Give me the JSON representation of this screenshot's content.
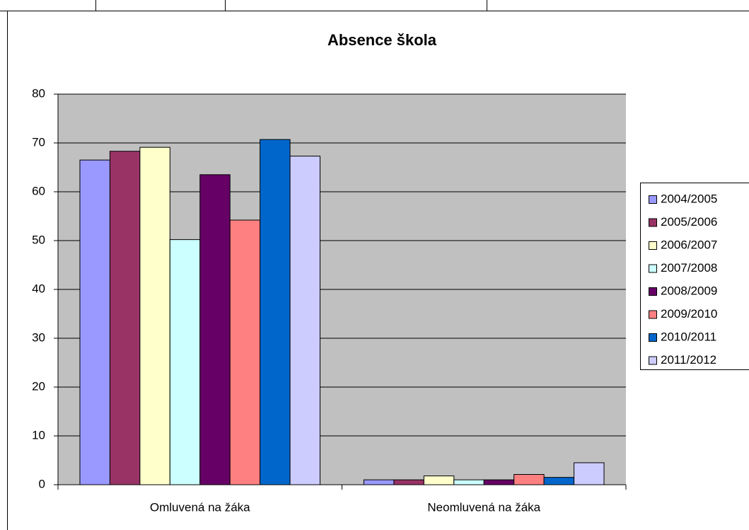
{
  "chart_data": {
    "type": "bar",
    "title": "Absence škola",
    "categories": [
      "Omluvená na žáka",
      "Neomluvená na žáka"
    ],
    "series": [
      {
        "name": "2004/2005",
        "color": "#9999ff",
        "values": [
          66.5,
          1.0
        ]
      },
      {
        "name": "2005/2006",
        "color": "#993366",
        "values": [
          68.3,
          1.0
        ]
      },
      {
        "name": "2006/2007",
        "color": "#ffffcc",
        "values": [
          69.1,
          1.8
        ]
      },
      {
        "name": "2007/2008",
        "color": "#ccffff",
        "values": [
          50.2,
          1.0
        ]
      },
      {
        "name": "2008/2009",
        "color": "#660066",
        "values": [
          63.5,
          1.0
        ]
      },
      {
        "name": "2009/2010",
        "color": "#ff8080",
        "values": [
          54.2,
          2.1
        ]
      },
      {
        "name": "2010/2011",
        "color": "#0066cc",
        "values": [
          70.7,
          1.5
        ]
      },
      {
        "name": "2011/2012",
        "color": "#ccccff",
        "values": [
          67.3,
          4.5
        ]
      }
    ],
    "ylim": [
      0,
      80
    ],
    "yticks": [
      0,
      10,
      20,
      30,
      40,
      50,
      60,
      70,
      80
    ],
    "grid": true,
    "legend": "right"
  }
}
